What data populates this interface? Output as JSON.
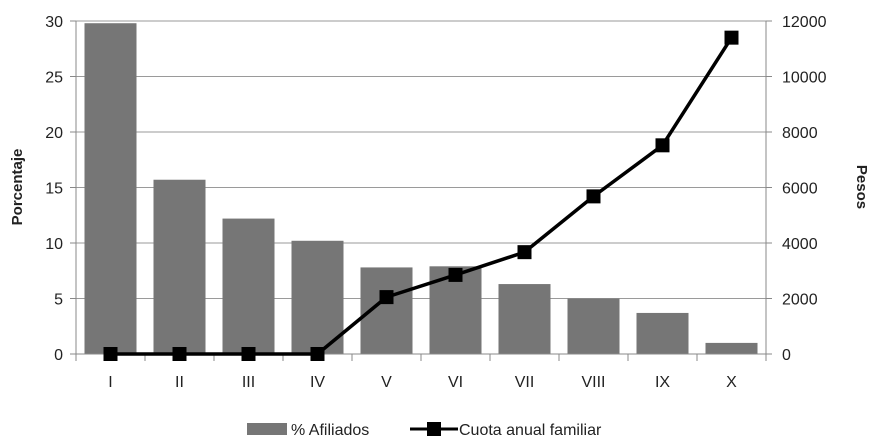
{
  "chart_data": {
    "type": "bar",
    "categories": [
      "I",
      "II",
      "III",
      "IV",
      "V",
      "VI",
      "VII",
      "VIII",
      "IX",
      "X"
    ],
    "series": [
      {
        "name": "% Afiliados",
        "type": "bar",
        "axis": "left",
        "color": "#767676",
        "values": [
          29.8,
          15.7,
          12.2,
          10.2,
          7.8,
          7.9,
          6.3,
          5.0,
          3.7,
          1.0
        ]
      },
      {
        "name": "Cuota anual familiar",
        "type": "line",
        "axis": "right",
        "color": "#000000",
        "marker": "square",
        "values": [
          0,
          0,
          0,
          0,
          2050,
          2850,
          3670,
          5680,
          7520,
          11400
        ]
      }
    ],
    "ylabel": "Porcentaje",
    "y2label": "Pesos",
    "ylim": [
      0,
      30
    ],
    "y2lim": [
      0,
      12000
    ],
    "yticks": [
      "0",
      "5",
      "10",
      "15",
      "20",
      "25",
      "30"
    ],
    "y2ticks": [
      "0",
      "2000",
      "4000",
      "6000",
      "8000",
      "10000",
      "12000"
    ],
    "grid": true,
    "legend": "bottom"
  }
}
